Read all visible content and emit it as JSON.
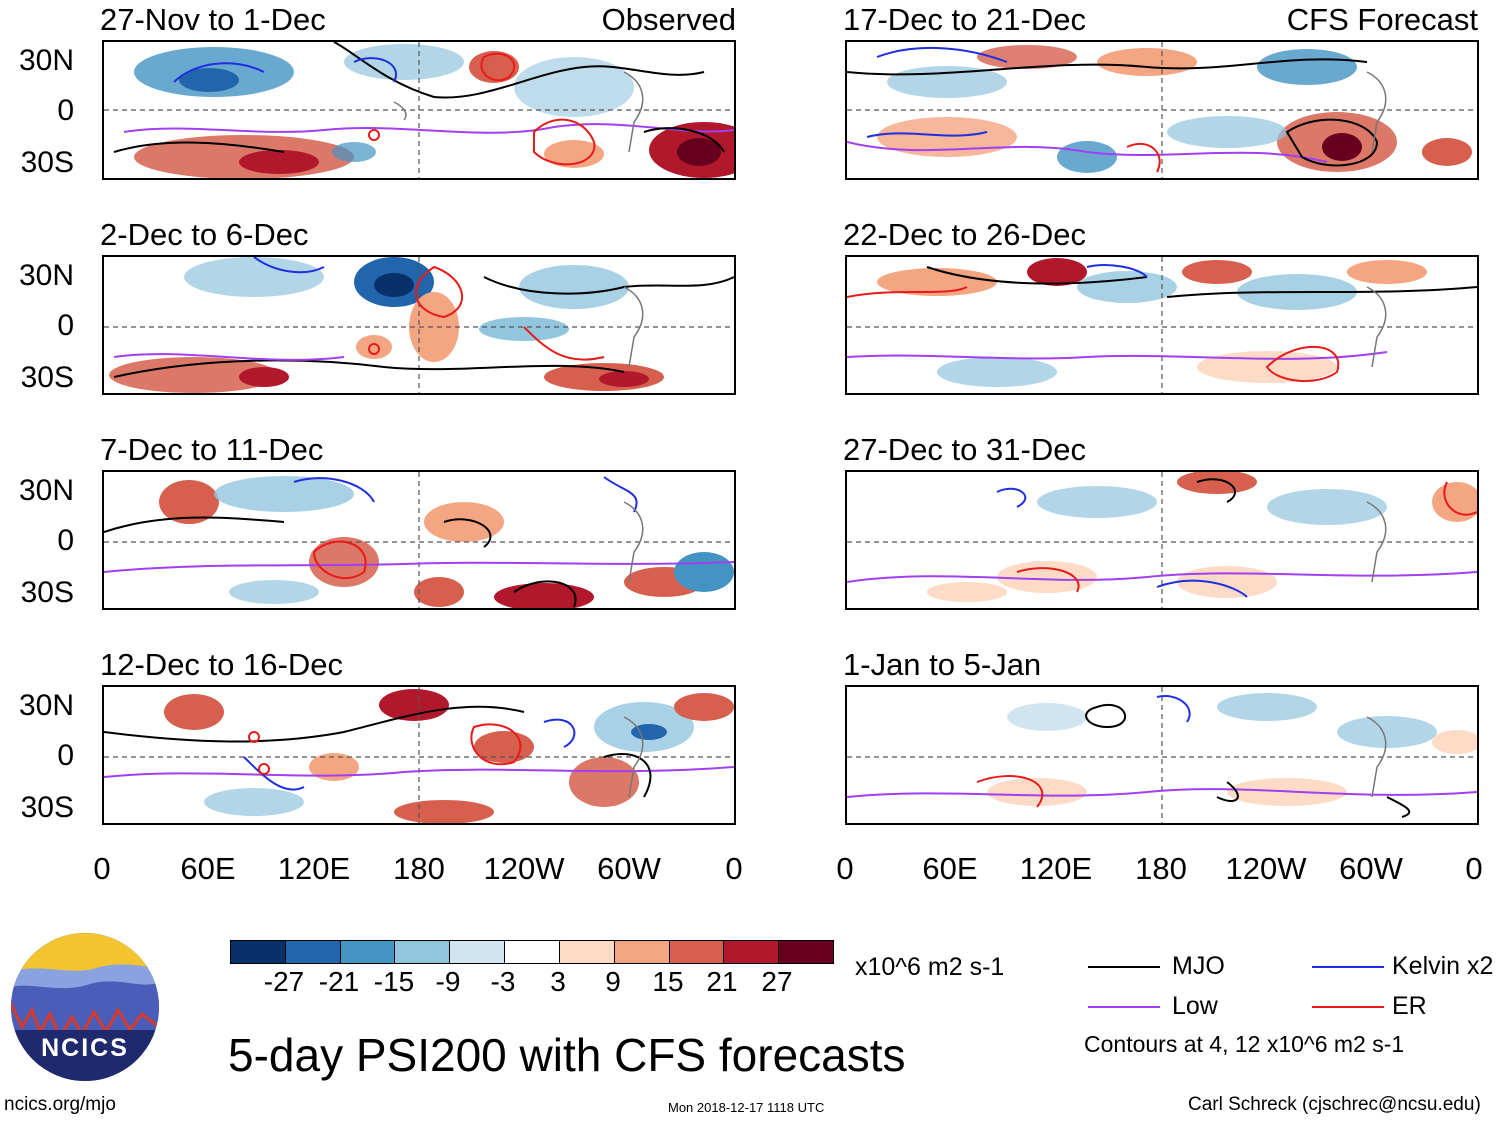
{
  "colors": {
    "mjo": "#000000",
    "kelvin": "#1f2fe0",
    "low": "#a040f0",
    "er": "#e81a1a",
    "scale": [
      "#08306b",
      "#2166ac",
      "#4393c3",
      "#92c5de",
      "#d1e5f0",
      "#ffffff",
      "#fddbc7",
      "#f4a582",
      "#d6604d",
      "#b2182b",
      "#67001f"
    ]
  },
  "panels_observed": [
    {
      "title": "27-Nov to 1-Dec",
      "label": "Observed"
    },
    {
      "title": "2-Dec to 6-Dec",
      "label": ""
    },
    {
      "title": "7-Dec to 11-Dec",
      "label": ""
    },
    {
      "title": "12-Dec to 16-Dec",
      "label": ""
    }
  ],
  "panels_forecast": [
    {
      "title": "17-Dec to 21-Dec",
      "label": "CFS Forecast"
    },
    {
      "title": "22-Dec to 26-Dec",
      "label": ""
    },
    {
      "title": "27-Dec to 31-Dec",
      "label": ""
    },
    {
      "title": "1-Jan to 5-Jan",
      "label": ""
    }
  ],
  "lat_labels": [
    "30N",
    "0",
    "30S"
  ],
  "lon_labels": [
    "0",
    "60E",
    "120E",
    "180",
    "120W",
    "60W",
    "0"
  ],
  "colorbar": {
    "ticks": [
      "-27",
      "-21",
      "-15",
      "-9",
      "-3",
      "3",
      "9",
      "15",
      "21",
      "27"
    ],
    "units": "x10^6 m2 s-1"
  },
  "legend": {
    "mjo": "MJO",
    "kelvin": "Kelvin x2",
    "low": "Low",
    "er": "ER",
    "contours": "Contours at 4, 12 x10^6 m2 s-1"
  },
  "logo_text": "NCICS",
  "main_title": "5-day PSI200 with CFS forecasts",
  "website": "ncics.org/mjo",
  "timestamp": "Mon 2018-12-17 1118 UTC",
  "author": "Carl Schreck (cjschrec@ncsu.edu)"
}
